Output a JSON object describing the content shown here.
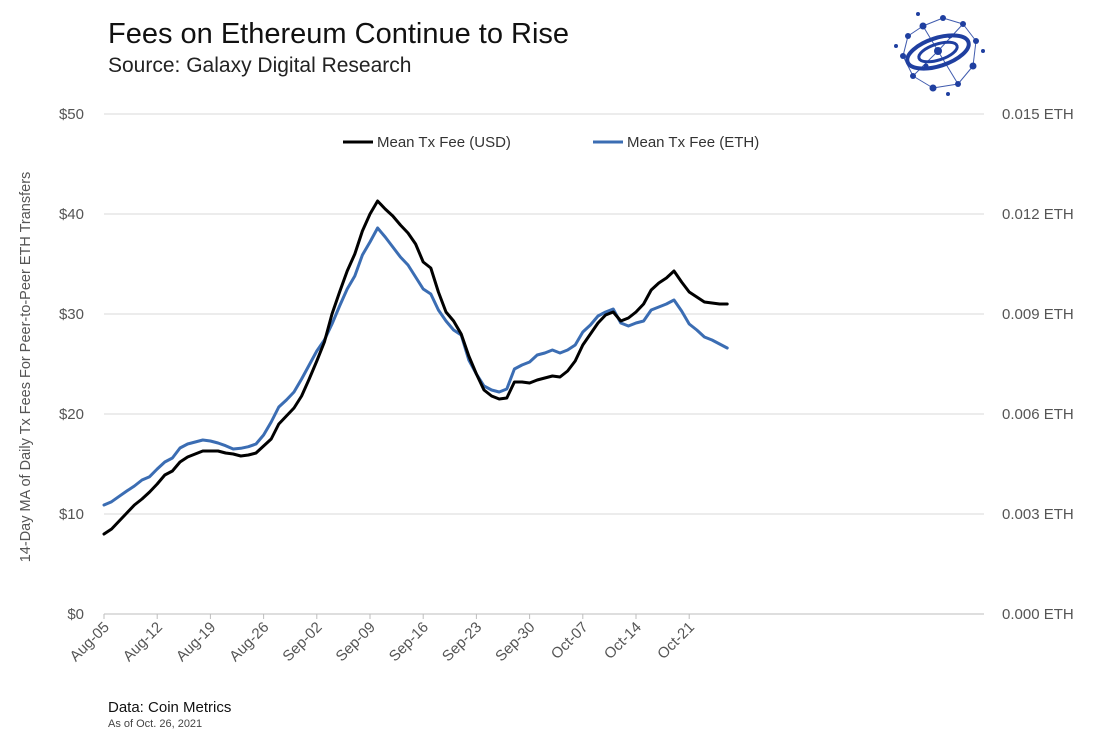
{
  "header": {
    "title": "Fees on Ethereum Continue to Rise",
    "subtitle": "Source: Galaxy Digital Research"
  },
  "footer": {
    "source": "Data: Coin Metrics",
    "as_of": "As of Oct. 26, 2021"
  },
  "logo": {
    "icon": "galaxy-network-logo-icon",
    "color": "#1f3fa0"
  },
  "chart_data": {
    "type": "line",
    "title": "Fees on Ethereum Continue to Rise",
    "ylabel": "14-Day MA of Daily Tx Fees For Peer-to-Peer ETH Transfers",
    "ylabel_right": "",
    "xlabel": "",
    "ylim": [
      0,
      50
    ],
    "ylim_right": [
      0,
      0.015
    ],
    "y_ticks": [
      "$0",
      "$10",
      "$20",
      "$30",
      "$40",
      "$50"
    ],
    "y_right_ticks": [
      "0.000 ETH",
      "0.003 ETH",
      "0.006 ETH",
      "0.009 ETH",
      "0.012 ETH",
      "0.015 ETH"
    ],
    "x_ticks": [
      "Aug-05",
      "Aug-12",
      "Aug-19",
      "Aug-26",
      "Sep-02",
      "Sep-09",
      "Sep-16",
      "Sep-23",
      "Sep-30",
      "Oct-07",
      "Oct-14",
      "Oct-21"
    ],
    "x_tick_day_index": [
      0,
      7,
      14,
      21,
      28,
      35,
      42,
      49,
      56,
      63,
      70,
      77
    ],
    "grid": true,
    "legend_position": "top-center",
    "series": [
      {
        "name": "Mean Tx Fee (USD)",
        "axis": "left",
        "color": "#000000",
        "values": [
          8.0,
          8.5,
          9.3,
          10.1,
          10.9,
          11.5,
          12.2,
          13.0,
          13.9,
          14.3,
          15.2,
          15.7,
          16.0,
          16.3,
          16.3,
          16.3,
          16.1,
          16.0,
          15.8,
          15.9,
          16.1,
          16.8,
          17.5,
          19.0,
          19.8,
          20.6,
          21.8,
          23.5,
          25.3,
          27.2,
          30.0,
          32.2,
          34.3,
          36.0,
          38.3,
          40.0,
          41.3,
          40.5,
          39.8,
          38.9,
          38.1,
          37.0,
          35.2,
          34.6,
          32.2,
          30.2,
          29.3,
          28.0,
          25.8,
          24.0,
          22.4,
          21.8,
          21.5,
          21.6,
          23.2,
          23.2,
          23.1,
          23.4,
          23.6,
          23.8,
          23.7,
          24.3,
          25.3,
          26.9,
          28.0,
          29.1,
          29.9,
          30.2,
          29.3,
          29.6,
          30.2,
          31.0,
          32.4,
          33.1,
          33.6,
          34.3,
          33.2,
          32.2,
          31.7,
          31.2,
          31.1,
          31.0,
          31.0
        ]
      },
      {
        "name": "Mean Tx Fee (ETH)",
        "axis": "right",
        "color": "#3b6db3",
        "values": [
          0.00327,
          0.00337,
          0.00353,
          0.00369,
          0.00384,
          0.00402,
          0.00412,
          0.00435,
          0.00456,
          0.00468,
          0.00498,
          0.0051,
          0.00516,
          0.00522,
          0.00519,
          0.00513,
          0.00505,
          0.00495,
          0.00497,
          0.00502,
          0.0051,
          0.00537,
          0.00576,
          0.00621,
          0.00642,
          0.00666,
          0.00705,
          0.00747,
          0.00789,
          0.00822,
          0.0087,
          0.00924,
          0.00975,
          0.01014,
          0.01077,
          0.01116,
          0.01158,
          0.01131,
          0.01101,
          0.01071,
          0.01047,
          0.01011,
          0.00975,
          0.0096,
          0.00912,
          0.00879,
          0.00852,
          0.00837,
          0.00762,
          0.0072,
          0.00684,
          0.00672,
          0.00666,
          0.00675,
          0.00735,
          0.00747,
          0.00756,
          0.00777,
          0.00783,
          0.00792,
          0.00783,
          0.00792,
          0.00807,
          0.00846,
          0.00867,
          0.00894,
          0.00906,
          0.00915,
          0.00873,
          0.00864,
          0.00873,
          0.00879,
          0.00912,
          0.00921,
          0.0093,
          0.00942,
          0.00909,
          0.0087,
          0.00852,
          0.00831,
          0.00822,
          0.0081,
          0.00798
        ]
      }
    ]
  }
}
